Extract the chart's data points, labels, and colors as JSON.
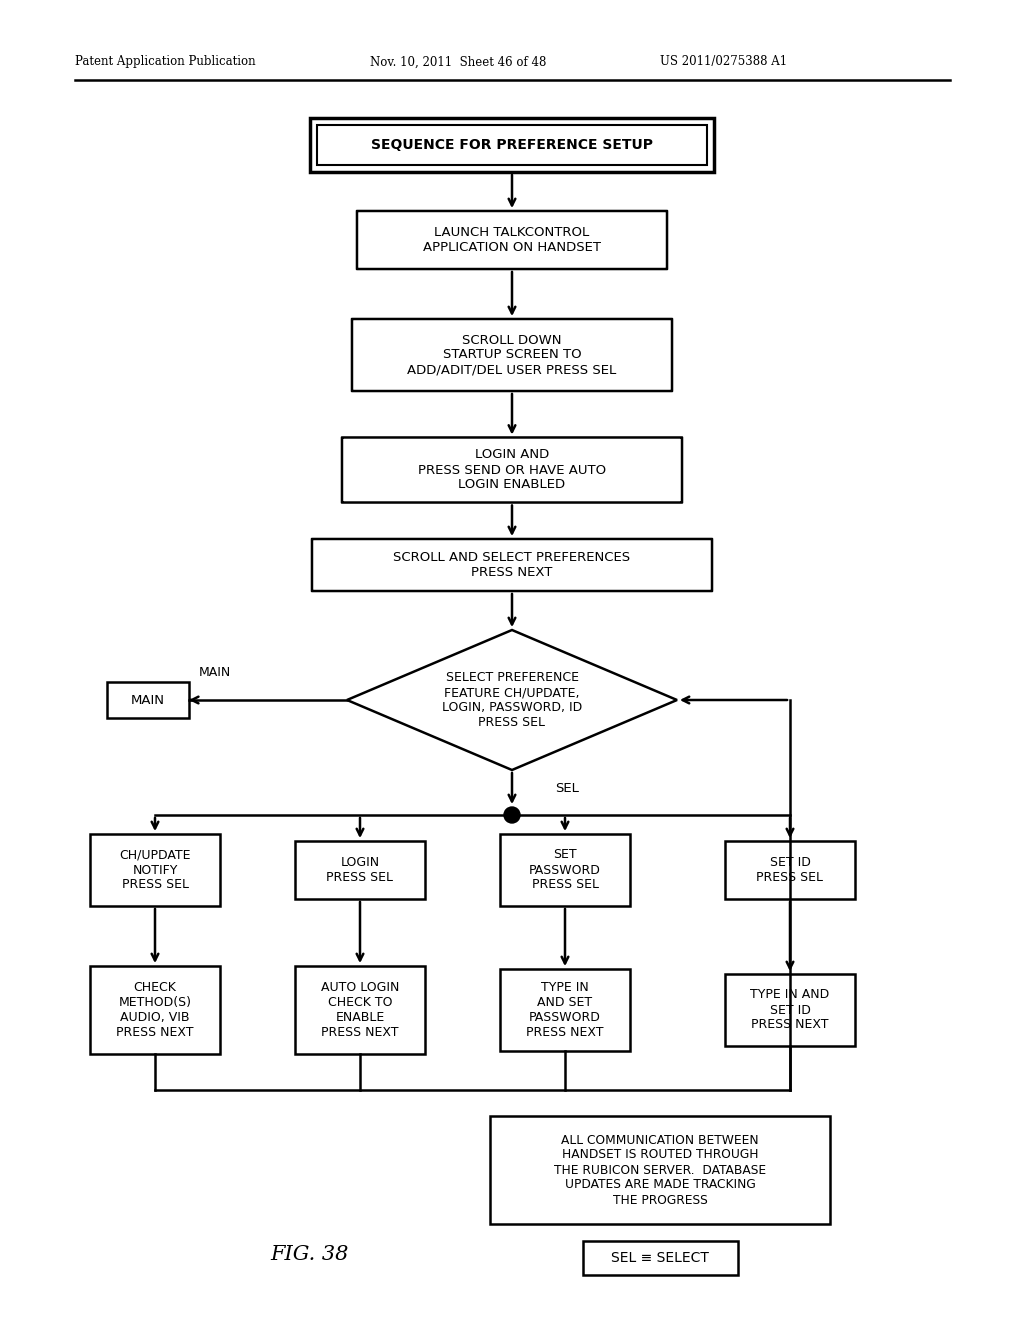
{
  "bg_color": "#ffffff",
  "header_left": "Patent Application Publication",
  "header_mid": "Nov. 10, 2011  Sheet 46 of 48",
  "header_right": "US 2011/0275388 A1",
  "title_box": "SEQUENCE FOR PREFERENCE SETUP",
  "box1": "LAUNCH TALKCONTROL\nAPPLICATION ON HANDSET",
  "box2": "SCROLL DOWN\nSTARTUP SCREEN TO\nADD/ADIT/DEL USER PRESS SEL",
  "box3": "LOGIN AND\nPRESS SEND OR HAVE AUTO\nLOGIN ENABLED",
  "box4": "SCROLL AND SELECT PREFERENCES\nPRESS NEXT",
  "diamond": "SELECT PREFERENCE\nFEATURE CH/UPDATE,\nLOGIN, PASSWORD, ID\nPRESS SEL",
  "box_main": "MAIN",
  "label_main": "MAIN",
  "label_sel": "SEL",
  "box_ch": "CH/UPDATE\nNOTIFY\nPRESS SEL",
  "box_login": "LOGIN\nPRESS SEL",
  "box_pass": "SET\nPASSWORD\nPRESS SEL",
  "box_id": "SET ID\nPRESS SEL",
  "box_ch2": "CHECK\nMETHOD(S)\nAUDIO, VIB\nPRESS NEXT",
  "box_login2": "AUTO LOGIN\nCHECK TO\nENABLE\nPRESS NEXT",
  "box_pass2": "TYPE IN\nAND SET\nPASSWORD\nPRESS NEXT",
  "box_id2": "TYPE IN AND\nSET ID\nPRESS NEXT",
  "note_box": "ALL COMMUNICATION BETWEEN\nHANDSET IS ROUTED THROUGH\nTHE RUBICON SERVER.  DATABASE\nUPDATES ARE MADE TRACKING\nTHE PROGRESS",
  "legend_box": "SEL ≡ SELECT",
  "fig_label": "FIG. 38"
}
